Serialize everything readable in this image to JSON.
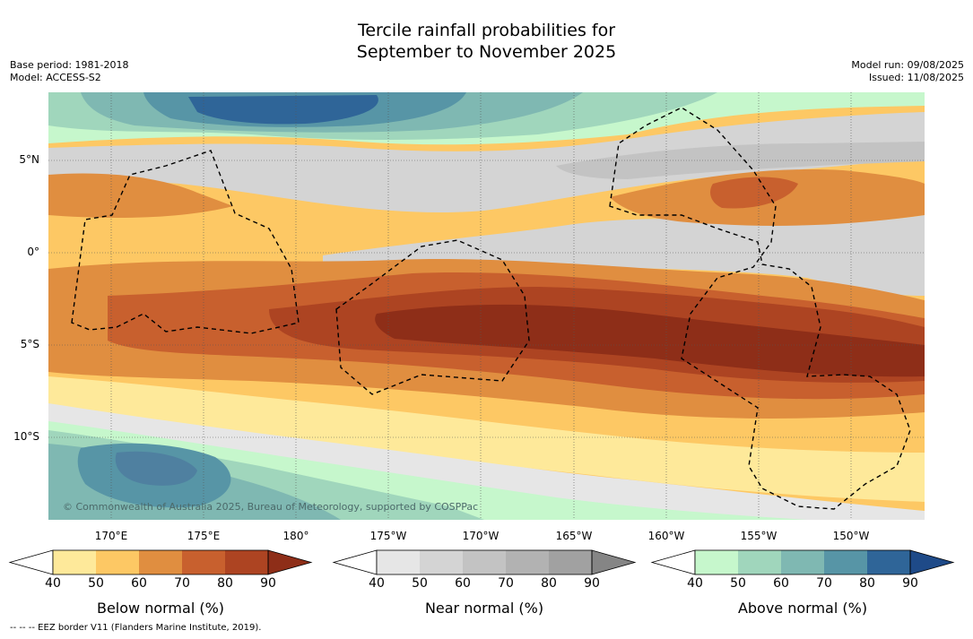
{
  "title_line1": "Tercile rainfall probabilities for",
  "title_line2": "September to November 2025",
  "base_period": "Base period: 1981-2018",
  "model": "Model: ACCESS-S2",
  "model_run": "Model run: 09/08/2025",
  "issued": "Issued: 11/08/2025",
  "lat_labels": [
    "5°N",
    "0°",
    "5°S",
    "10°S"
  ],
  "lon_labels": [
    "170°E",
    "175°E",
    "180°",
    "175°W",
    "170°W",
    "165°W",
    "160°W",
    "155°W",
    "150°W"
  ],
  "copyright": "© Commonwealth of Australia 2025, Bureau of Meteorology, supported by COSPPac",
  "footer": "-- -- -- EEZ border V11 (Flanders Marine Institute, 2019).",
  "colorbars": [
    {
      "label": "Below normal (%)",
      "ticks": [
        "40",
        "50",
        "60",
        "70",
        "80",
        "90"
      ],
      "colors": [
        "#ffffff",
        "#fee99a",
        "#fdc864",
        "#e08e40",
        "#c8602e",
        "#ad4422",
        "#8e2e18"
      ]
    },
    {
      "label": "Near normal (%)",
      "ticks": [
        "40",
        "50",
        "60",
        "70",
        "80",
        "90"
      ],
      "colors": [
        "#ffffff",
        "#e6e6e6",
        "#d4d4d4",
        "#c3c3c3",
        "#b2b2b2",
        "#a1a1a1",
        "#858585"
      ]
    },
    {
      "label": "Above normal (%)",
      "ticks": [
        "40",
        "50",
        "60",
        "70",
        "80",
        "90"
      ],
      "colors": [
        "#ffffff",
        "#c6f7cc",
        "#a0d6bc",
        "#7fb8b2",
        "#5795a6",
        "#2f6598",
        "#1e4a88"
      ]
    }
  ]
}
